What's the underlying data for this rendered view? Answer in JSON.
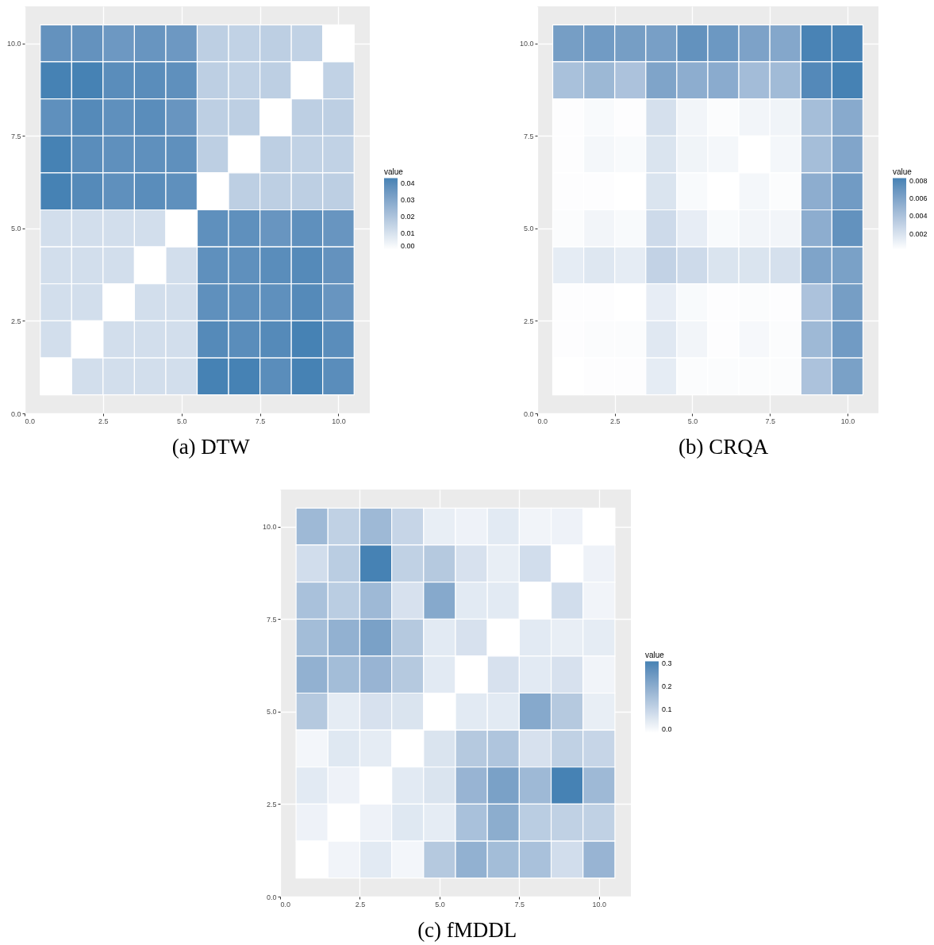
{
  "chart_data": [
    {
      "type": "heatmap",
      "title": "(a) DTW",
      "x": [
        1,
        2,
        3,
        4,
        5,
        6,
        7,
        8,
        9,
        10
      ],
      "y": [
        10,
        9,
        8,
        7,
        6,
        5,
        4,
        3,
        2,
        1
      ],
      "cells": [
        [
          0.037,
          0.037,
          0.035,
          0.036,
          0.035,
          0.016,
          0.015,
          0.016,
          0.015,
          0
        ],
        [
          0.043,
          0.043,
          0.039,
          0.039,
          0.038,
          0.016,
          0.015,
          0.016,
          0,
          0.015
        ],
        [
          0.038,
          0.04,
          0.038,
          0.039,
          0.036,
          0.016,
          0.016,
          0,
          0.016,
          0.016
        ],
        [
          0.043,
          0.039,
          0.038,
          0.038,
          0.038,
          0.016,
          0,
          0.016,
          0.015,
          0.015
        ],
        [
          0.043,
          0.04,
          0.038,
          0.039,
          0.038,
          0,
          0.016,
          0.016,
          0.016,
          0.016
        ],
        [
          0.011,
          0.011,
          0.011,
          0.011,
          0,
          0.038,
          0.038,
          0.036,
          0.038,
          0.036
        ],
        [
          0.011,
          0.011,
          0.011,
          0,
          0.011,
          0.038,
          0.038,
          0.039,
          0.04,
          0.037
        ],
        [
          0.011,
          0.011,
          0,
          0.011,
          0.011,
          0.038,
          0.038,
          0.038,
          0.04,
          0.036
        ],
        [
          0.011,
          0,
          0.011,
          0.011,
          0.011,
          0.04,
          0.039,
          0.04,
          0.043,
          0.039
        ],
        [
          0,
          0.011,
          0.011,
          0.011,
          0.011,
          0.043,
          0.043,
          0.039,
          0.043,
          0.039
        ]
      ],
      "clim": [
        0,
        0.043
      ],
      "cticks": [
        {
          "value": 0,
          "label": "0.00"
        },
        0.01,
        0.02,
        0.03,
        0.04
      ],
      "clabel": "value",
      "xlim": [
        0,
        11
      ],
      "xticks": [
        {
          "value": 0,
          "label": "0.0"
        },
        {
          "value": 2.5,
          "label": "2.5"
        },
        {
          "value": 5,
          "label": "5.0"
        },
        {
          "value": 7.5,
          "label": "7.5"
        },
        {
          "value": 10,
          "label": "10.0"
        }
      ],
      "ylim": [
        0,
        11
      ],
      "yticks": [
        {
          "value": 0,
          "label": "0.0"
        },
        {
          "value": 2.5,
          "label": "2.5"
        },
        {
          "value": 5,
          "label": "5.0"
        },
        {
          "value": 7.5,
          "label": "7.5"
        },
        {
          "value": 10,
          "label": "10.0"
        }
      ],
      "grid": true
    },
    {
      "type": "heatmap",
      "title": "(b) CRQA",
      "x": [
        1,
        2,
        3,
        4,
        5,
        6,
        7,
        8,
        9,
        10
      ],
      "y": [
        10,
        9,
        8,
        7,
        6,
        5,
        4,
        3,
        2,
        1
      ],
      "cells": [
        [
          0.0064,
          0.0066,
          0.0064,
          0.0063,
          0.0072,
          0.0068,
          0.0061,
          0.0058,
          0.0082,
          0.0082
        ],
        [
          0.0041,
          0.0047,
          0.004,
          0.006,
          0.0054,
          0.0055,
          0.0044,
          0.0045,
          0.0078,
          0.0083
        ],
        [
          0.0003,
          0.0005,
          0.0003,
          0.0021,
          0.0008,
          0.0004,
          0.0008,
          0.0009,
          0.0043,
          0.0056
        ],
        [
          0.0003,
          0.0007,
          0.0005,
          0.0019,
          0.0009,
          0.0007,
          0.0002,
          0.0007,
          0.0043,
          0.0059
        ],
        [
          0.0003,
          0.0003,
          0.0002,
          0.0019,
          0.0005,
          0.0002,
          0.0007,
          0.0004,
          0.0054,
          0.0066
        ],
        [
          0.0004,
          0.0008,
          0.0005,
          0.0025,
          0.0013,
          0.0005,
          0.0008,
          0.0008,
          0.0054,
          0.0072
        ],
        [
          0.0014,
          0.0017,
          0.0014,
          0.003,
          0.0025,
          0.0019,
          0.0019,
          0.0021,
          0.006,
          0.0062
        ],
        [
          0.0003,
          0.0003,
          0.0002,
          0.0013,
          0.0005,
          0.0003,
          0.0004,
          0.0003,
          0.004,
          0.0064
        ],
        [
          0.0003,
          0.0004,
          0.0004,
          0.0016,
          0.0008,
          0.0003,
          0.0006,
          0.0004,
          0.0046,
          0.0066
        ],
        [
          0.0002,
          0.0003,
          0.0003,
          0.0014,
          0.0004,
          0.0004,
          0.0004,
          0.0004,
          0.004,
          0.0062
        ]
      ],
      "clim": [
        0.0002,
        0.0083
      ],
      "cticks": [
        0.002,
        0.004,
        0.006,
        0.008
      ],
      "clabel": "value",
      "xlim": [
        0,
        11
      ],
      "xticks": [
        {
          "value": 0,
          "label": "0.0"
        },
        {
          "value": 2.5,
          "label": "2.5"
        },
        {
          "value": 5,
          "label": "5.0"
        },
        {
          "value": 7.5,
          "label": "7.5"
        },
        {
          "value": 10,
          "label": "10.0"
        }
      ],
      "ylim": [
        0,
        11
      ],
      "yticks": [
        {
          "value": 0,
          "label": "0.0"
        },
        {
          "value": 2.5,
          "label": "2.5"
        },
        {
          "value": 5,
          "label": "5.0"
        },
        {
          "value": 7.5,
          "label": "7.5"
        },
        {
          "value": 10,
          "label": "10.0"
        }
      ],
      "grid": true
    },
    {
      "type": "heatmap",
      "title": "(c) fMDDL",
      "x": [
        1,
        2,
        3,
        4,
        5,
        6,
        7,
        8,
        9,
        10
      ],
      "y": [
        10,
        9,
        8,
        7,
        6,
        5,
        4,
        3,
        2,
        1
      ],
      "cells": [
        [
          0.17,
          0.11,
          0.17,
          0.1,
          0.04,
          0.03,
          0.05,
          0.025,
          0.03,
          0
        ],
        [
          0.08,
          0.12,
          0.31,
          0.11,
          0.13,
          0.07,
          0.04,
          0.08,
          0,
          0.03
        ],
        [
          0.15,
          0.12,
          0.17,
          0.07,
          0.21,
          0.05,
          0.05,
          0,
          0.08,
          0.025
        ],
        [
          0.16,
          0.19,
          0.23,
          0.13,
          0.05,
          0.07,
          0,
          0.05,
          0.04,
          0.045
        ],
        [
          0.19,
          0.16,
          0.18,
          0.13,
          0.05,
          0,
          0.07,
          0.05,
          0.07,
          0.025
        ],
        [
          0.13,
          0.045,
          0.07,
          0.065,
          0,
          0.05,
          0.05,
          0.21,
          0.13,
          0.04
        ],
        [
          0.02,
          0.055,
          0.045,
          0,
          0.065,
          0.13,
          0.14,
          0.07,
          0.11,
          0.1
        ],
        [
          0.05,
          0.03,
          0,
          0.05,
          0.065,
          0.18,
          0.23,
          0.17,
          0.31,
          0.17
        ],
        [
          0.03,
          0,
          0.03,
          0.055,
          0.045,
          0.15,
          0.2,
          0.12,
          0.11,
          0.11
        ],
        [
          0,
          0.025,
          0.05,
          0.02,
          0.13,
          0.19,
          0.16,
          0.15,
          0.08,
          0.18
        ]
      ],
      "clim": [
        0,
        0.31
      ],
      "cticks": [
        {
          "value": 0,
          "label": "0.0"
        },
        0.1,
        0.2,
        0.3
      ],
      "clabel": "value",
      "xlim": [
        0,
        11
      ],
      "xticks": [
        {
          "value": 0,
          "label": "0.0"
        },
        {
          "value": 2.5,
          "label": "2.5"
        },
        {
          "value": 5,
          "label": "5.0"
        },
        {
          "value": 7.5,
          "label": "7.5"
        },
        {
          "value": 10,
          "label": "10.0"
        }
      ],
      "ylim": [
        0,
        11
      ],
      "yticks": [
        {
          "value": 0,
          "label": "0.0"
        },
        {
          "value": 2.5,
          "label": "2.5"
        },
        {
          "value": 5,
          "label": "5.0"
        },
        {
          "value": 7.5,
          "label": "7.5"
        },
        {
          "value": 10,
          "label": "10.0"
        }
      ],
      "grid": true
    }
  ]
}
